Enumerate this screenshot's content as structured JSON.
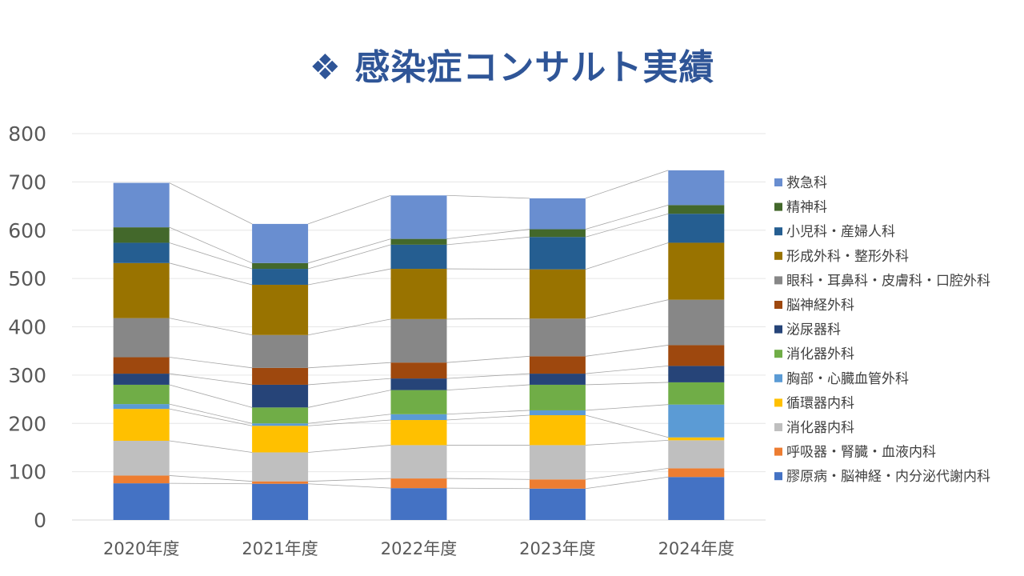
{
  "chart_data": {
    "type": "bar",
    "stacked": true,
    "title": "❖ 感染症コンサルト実績",
    "xlabel": "",
    "ylabel": "",
    "ylim": [
      0,
      800
    ],
    "y_ticks": [
      0,
      100,
      200,
      300,
      400,
      500,
      600,
      700,
      800
    ],
    "grid": true,
    "series_lines": true,
    "legend_position": "right",
    "categories": [
      "2020年度",
      "2021年度",
      "2022年度",
      "2023年度",
      "2024年度"
    ],
    "series": [
      {
        "name": "膠原病・脳神経・内分泌代謝内科",
        "color": "#4472C4",
        "values": [
          76,
          75,
          66,
          65,
          89
        ]
      },
      {
        "name": "呼吸器・腎臓・血液内科",
        "color": "#ED7D31",
        "values": [
          16,
          5,
          20,
          19,
          18
        ]
      },
      {
        "name": "消化器内科",
        "color": "#BFBFBF",
        "values": [
          72,
          60,
          69,
          71,
          58
        ]
      },
      {
        "name": "循環器内科",
        "color": "#FFC000",
        "values": [
          66,
          55,
          52,
          62,
          6
        ]
      },
      {
        "name": "胸部・心臓血管外科",
        "color": "#5B9BD5",
        "values": [
          10,
          5,
          12,
          10,
          68
        ]
      },
      {
        "name": "消化器外科",
        "color": "#70AD47",
        "values": [
          40,
          33,
          50,
          53,
          46
        ]
      },
      {
        "name": "泌尿器科",
        "color": "#264478",
        "values": [
          23,
          47,
          24,
          23,
          34
        ]
      },
      {
        "name": "脳神経外科",
        "color": "#9E480E",
        "values": [
          34,
          35,
          33,
          36,
          43
        ]
      },
      {
        "name": "眼科・耳鼻科・皮膚科・口腔外科",
        "color": "#878787",
        "values": [
          81,
          68,
          90,
          78,
          94
        ]
      },
      {
        "name": "形成外科・整形外科",
        "color": "#997300",
        "values": [
          114,
          104,
          104,
          102,
          118
        ]
      },
      {
        "name": "小児科・産婦人科",
        "color": "#255E91",
        "values": [
          42,
          33,
          50,
          67,
          60
        ]
      },
      {
        "name": "精神科",
        "color": "#43682B",
        "values": [
          32,
          12,
          12,
          16,
          18
        ]
      },
      {
        "name": "救急科",
        "color": "#698ED0",
        "values": [
          92,
          81,
          90,
          64,
          72
        ]
      }
    ]
  }
}
